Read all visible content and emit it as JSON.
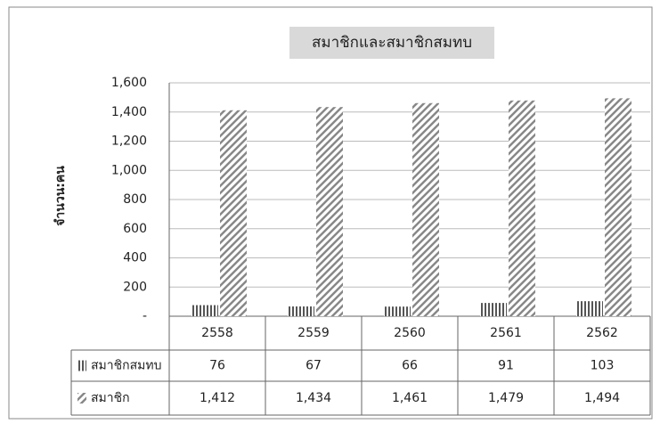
{
  "chart_data": {
    "type": "bar",
    "title": "สมาชิกและสมาชิกสมทบ",
    "ylabel": "จำนวน:คน",
    "categories": [
      "2558",
      "2559",
      "2560",
      "2561",
      "2562"
    ],
    "series": [
      {
        "name": "สมาชิกสมทบ",
        "color": "#555555",
        "values": [
          76,
          67,
          66,
          91,
          103
        ]
      },
      {
        "name": "สมาชิก",
        "color": "#888888",
        "values": [
          1412,
          1434,
          1461,
          1479,
          1494
        ],
        "value_labels": [
          "1,412",
          "1,434",
          "1,461",
          "1,479",
          "1,494"
        ]
      }
    ],
    "ylim": [
      0,
      1600
    ],
    "yticks": [
      {
        "value": 0,
        "label": "-"
      },
      200,
      400,
      600,
      800,
      {
        "value": 1000,
        "label": "1,000"
      },
      {
        "value": 1200,
        "label": "1,200"
      },
      {
        "value": 1400,
        "label": "1,400"
      },
      {
        "value": 1600,
        "label": "1,600"
      }
    ],
    "grid": true,
    "data_table": true
  }
}
